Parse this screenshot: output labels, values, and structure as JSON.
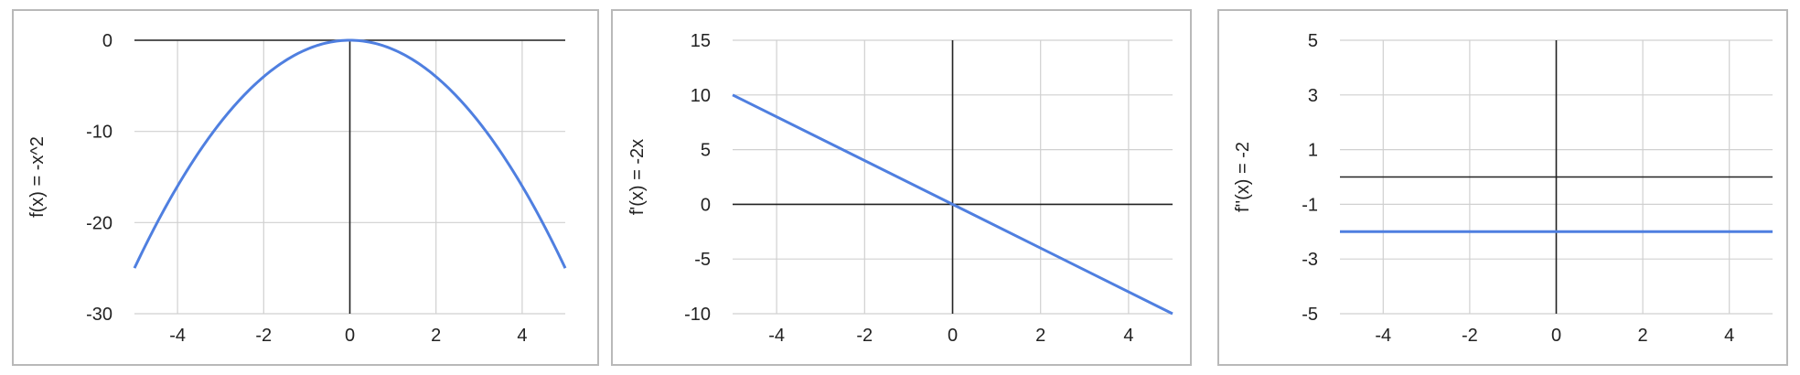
{
  "chart_data": [
    {
      "type": "line",
      "ylabel": "f(x) = -x^2",
      "xlabel": "",
      "xlim": [
        -5,
        5
      ],
      "ylim": [
        -30,
        0
      ],
      "xticks": [
        -4,
        -2,
        0,
        2,
        4
      ],
      "yticks": [
        0,
        -10,
        -20,
        -30
      ],
      "grid": true,
      "series": [
        {
          "color": "#4f7fe0",
          "x": [
            -5,
            -4,
            -3,
            -2,
            -1,
            0,
            1,
            2,
            3,
            4,
            5
          ],
          "y": [
            -25,
            -16,
            -9,
            -4,
            -1,
            0,
            -1,
            -4,
            -9,
            -16,
            -25
          ]
        }
      ]
    },
    {
      "type": "line",
      "ylabel": "f'(x) = -2x",
      "xlabel": "",
      "xlim": [
        -5,
        5
      ],
      "ylim": [
        -10,
        15
      ],
      "xticks": [
        -4,
        -2,
        0,
        2,
        4
      ],
      "yticks": [
        15,
        10,
        5,
        0,
        -5,
        -10
      ],
      "grid": true,
      "series": [
        {
          "color": "#4f7fe0",
          "x": [
            -5,
            0,
            5
          ],
          "y": [
            10,
            0,
            -10
          ]
        }
      ]
    },
    {
      "type": "line",
      "ylabel": "f''(x) = -2",
      "xlabel": "",
      "xlim": [
        -5,
        5
      ],
      "ylim": [
        -5,
        5
      ],
      "xticks": [
        -4,
        -2,
        0,
        2,
        4
      ],
      "yticks": [
        5,
        3,
        1,
        -1,
        -3,
        -5
      ],
      "grid": true,
      "series": [
        {
          "color": "#4f7fe0",
          "x": [
            -5,
            5
          ],
          "y": [
            -2,
            -2
          ]
        }
      ]
    }
  ]
}
